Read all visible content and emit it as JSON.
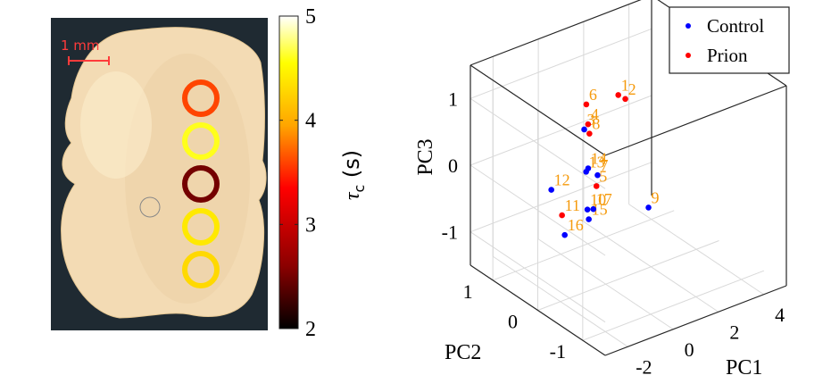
{
  "left_panel": {
    "scale_bar_label": "1 mm",
    "rings": [
      {
        "tau": 3.6
      },
      {
        "tau": 4.6
      },
      {
        "tau": 2.5
      },
      {
        "tau": 4.4
      },
      {
        "tau": 4.3
      }
    ],
    "colorbar": {
      "label_base": "τ",
      "label_sub": "c",
      "label_unit": " (s)",
      "min": 2,
      "max": 5,
      "ticks": [
        "5",
        "4",
        "3",
        "2"
      ],
      "colormap": "hot",
      "colors": [
        "#000000",
        "#8b0000",
        "#ff0000",
        "#ffa500",
        "#ffff00",
        "#ffffff"
      ]
    }
  },
  "chart_data": {
    "type": "scatter3d",
    "xlabel": "PC1",
    "ylabel": "PC2",
    "zlabel": "PC3",
    "xlim": [
      -3,
      5
    ],
    "ylim": [
      -1.5,
      1.5
    ],
    "zlim": [
      -1.5,
      1.5
    ],
    "xticks": [
      "-2",
      "0",
      "2",
      "4"
    ],
    "yticks": [
      "-1",
      "0",
      "1"
    ],
    "zticks": [
      "-1",
      "0",
      "1"
    ],
    "grid": true,
    "legend_position": "top-right",
    "label_color": "#f59a0c",
    "series": [
      {
        "name": "Control",
        "color": "#0000ff",
        "points": [
          {
            "label": "3",
            "x": 1.55,
            "y": 1.26,
            "z": 0.05
          },
          {
            "label": "7",
            "x": 2.02,
            "y": 1.2,
            "z": -0.67
          },
          {
            "label": "9",
            "x": 0.5,
            "y": -0.7,
            "z": -0.1
          },
          {
            "label": "10",
            "x": -1.8,
            "y": -0.5,
            "z": 0.08
          },
          {
            "label": "12",
            "x": -2.6,
            "y": -0.1,
            "z": 0.3
          },
          {
            "label": "13",
            "x": 0.92,
            "y": 0.9,
            "z": -0.34
          },
          {
            "label": "14",
            "x": 0.87,
            "y": 0.83,
            "z": -0.25
          },
          {
            "label": "15",
            "x": -0.55,
            "y": 0.1,
            "z": -0.5
          },
          {
            "label": "16",
            "x": -3.0,
            "y": -0.6,
            "z": -0.1
          },
          {
            "label": "17",
            "x": -1.28,
            "y": -0.37,
            "z": -0.04
          }
        ]
      },
      {
        "name": "Prion",
        "color": "#ff0000",
        "points": [
          {
            "label": "1",
            "x": 3.53,
            "y": 1.5,
            "z": 0.2
          },
          {
            "label": "2",
            "x": 3.84,
            "y": 1.5,
            "z": 0.1
          },
          {
            "label": "4",
            "x": 1.54,
            "y": 1.17,
            "z": 0.17
          },
          {
            "label": "5",
            "x": -1.6,
            "y": -0.6,
            "z": 0.45
          },
          {
            "label": "6",
            "x": 1.96,
            "y": 1.42,
            "z": 0.3
          },
          {
            "label": "8",
            "x": 1.66,
            "y": 1.2,
            "z": 0.0
          },
          {
            "label": "11",
            "x": -1.97,
            "y": -0.02,
            "z": -0.2
          }
        ]
      }
    ]
  }
}
